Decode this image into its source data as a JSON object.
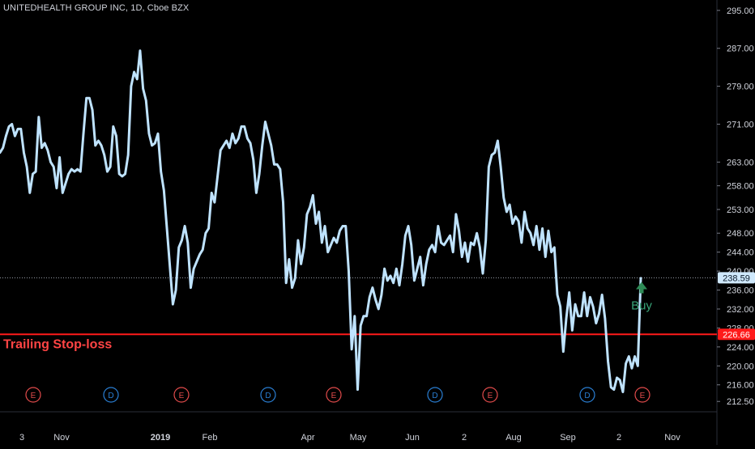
{
  "header": {
    "title": "UNITEDHEALTH GROUP INC, 1D, Cboe BZX"
  },
  "annotations": {
    "trailing_stop_label": "Trailing Stop-loss",
    "buy_label": "Buy"
  },
  "colors": {
    "background": "#000000",
    "price_line": "#bfe3ff",
    "stop_line": "#ff1a1a",
    "stop_label": "#ff4444",
    "buy_arrow": "#2e8b57",
    "buy_text": "#3aa67a",
    "axis_text": "#d1d4dc",
    "earnings_marker": "#e24b4b",
    "dividend_marker": "#2a7fd4"
  },
  "chart_data": {
    "type": "line",
    "title": "UNITEDHEALTH GROUP INC, 1D, Cboe BZX",
    "xlabel": "",
    "ylabel": "",
    "ylim": [
      211,
      296
    ],
    "grid": false,
    "x_tick_labels": [
      "3",
      "Nov",
      "2019",
      "Feb",
      "Apr",
      "May",
      "Jun",
      "2",
      "Aug",
      "Sep",
      "2",
      "Nov"
    ],
    "y_tick_labels": [
      "295.00",
      "287.00",
      "279.00",
      "271.00",
      "263.00",
      "258.00",
      "253.00",
      "248.00",
      "244.00",
      "240.00",
      "236.00",
      "232.00",
      "228.00",
      "224.00",
      "220.00",
      "216.00",
      "212.50"
    ],
    "series": [
      {
        "values": [
          265.0,
          266.0,
          268.5,
          270.5,
          271.0,
          268.5,
          270.0,
          270.0,
          265.0,
          262.0,
          256.5,
          260.5,
          261.0,
          272.5,
          266.0,
          267.0,
          265.5,
          263.0,
          262.0,
          257.5,
          264.0,
          256.5,
          258.5,
          260.5,
          261.5,
          261.0,
          261.5,
          261.0,
          269.0,
          276.5,
          276.5,
          274.0,
          266.5,
          267.5,
          266.5,
          264.5,
          261.0,
          262.0,
          270.5,
          268.5,
          260.5,
          260.0,
          260.5,
          264.5,
          279.0,
          282.0,
          280.5,
          286.5,
          278.5,
          276.0,
          269.0,
          266.5,
          267.0,
          269.0,
          261.0,
          257.0,
          249.0,
          241.0,
          233.0,
          236.0,
          245.0,
          246.5,
          249.5,
          246.0,
          236.5,
          240.5,
          242.0,
          243.5,
          244.5,
          248.0,
          249.0,
          256.5,
          254.5,
          260.0,
          265.5,
          266.5,
          267.5,
          266.0,
          269.0,
          267.0,
          268.0,
          270.5,
          270.5,
          268.0,
          267.0,
          263.5,
          256.5,
          260.5,
          266.5,
          271.5,
          269.0,
          266.5,
          262.5,
          262.5,
          261.5,
          254.5,
          237.5,
          242.5,
          236.5,
          238.5,
          246.5,
          241.5,
          245.0,
          252.0,
          253.5,
          256.0,
          250.0,
          252.5,
          246.0,
          249.5,
          244.0,
          245.5,
          247.0,
          246.0,
          248.5,
          249.5,
          249.5,
          240.0,
          223.5,
          230.5,
          215.0,
          228.5,
          230.5,
          230.5,
          234.5,
          236.5,
          234.0,
          232.0,
          235.0,
          240.5,
          238.0,
          239.0,
          237.5,
          240.5,
          237.0,
          241.5,
          247.5,
          249.5,
          245.5,
          238.0,
          240.5,
          243.0,
          237.0,
          241.5,
          244.5,
          245.5,
          244.0,
          249.5,
          246.0,
          245.5,
          246.5,
          247.5,
          244.0,
          252.0,
          248.5,
          243.0,
          246.0,
          242.0,
          246.0,
          245.5,
          248.0,
          245.0,
          239.5,
          246.5,
          262.0,
          264.5,
          265.0,
          267.5,
          262.0,
          255.5,
          252.5,
          254.0,
          250.0,
          251.5,
          250.5,
          246.0,
          252.5,
          249.0,
          248.0,
          245.5,
          249.5,
          244.5,
          249.0,
          243.0,
          248.5,
          244.0,
          245.0,
          235.0,
          232.5,
          223.0,
          230.0,
          235.5,
          227.5,
          233.0,
          230.5,
          230.5,
          235.5,
          230.5,
          234.5,
          232.5,
          229.0,
          231.0,
          235.0,
          230.0,
          221.0,
          215.5,
          215.0,
          217.5,
          217.0,
          214.5,
          220.5,
          222.0,
          219.5,
          222.0,
          220.0,
          238.5
        ]
      }
    ],
    "price_scale_markers": [
      {
        "label": "238.59",
        "value": 238.59,
        "style": "last-price"
      },
      {
        "label": "226.66",
        "value": 226.66,
        "style": "stop-loss"
      }
    ],
    "horizontal_lines": [
      {
        "name": "Trailing Stop-loss",
        "value": 226.66
      }
    ],
    "events": [
      {
        "type": "E",
        "kind": "earnings"
      },
      {
        "type": "D",
        "kind": "dividend"
      },
      {
        "type": "E",
        "kind": "earnings"
      },
      {
        "type": "D",
        "kind": "dividend"
      },
      {
        "type": "E",
        "kind": "earnings"
      },
      {
        "type": "D",
        "kind": "dividend"
      },
      {
        "type": "E",
        "kind": "earnings"
      },
      {
        "type": "D",
        "kind": "dividend"
      },
      {
        "type": "E",
        "kind": "earnings"
      }
    ]
  }
}
